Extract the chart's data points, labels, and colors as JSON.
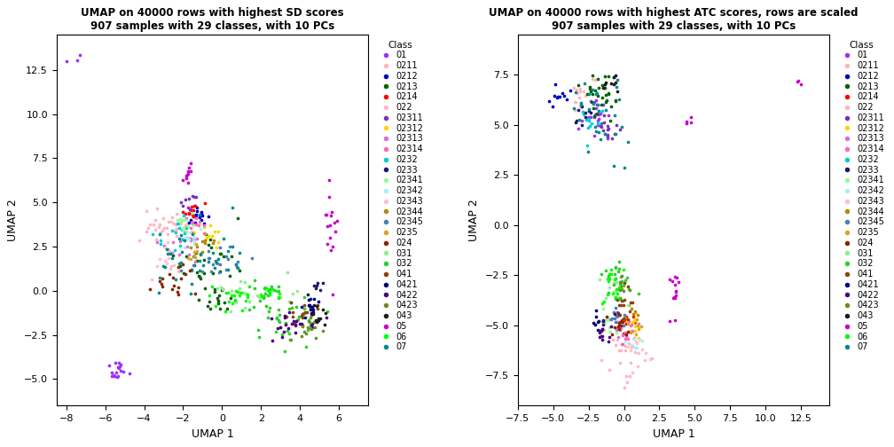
{
  "title1": "UMAP on 40000 rows with highest SD scores\n907 samples with 29 classes, with 10 PCs",
  "title2": "UMAP on 40000 rows with highest ATC scores, rows are scaled\n907 samples with 29 classes, with 10 PCs",
  "xlabel": "UMAP 1",
  "ylabel": "UMAP 2",
  "legend_title": "Class",
  "classes": [
    "01",
    "0211",
    "0212",
    "0213",
    "0214",
    "022",
    "02311",
    "02312",
    "02313",
    "02314",
    "0232",
    "0233",
    "02341",
    "02342",
    "02343",
    "02344",
    "02345",
    "0235",
    "024",
    "031",
    "032",
    "041",
    "0421",
    "0422",
    "0423",
    "043",
    "05",
    "06",
    "07"
  ],
  "class_colors": {
    "01": "#9B30FF",
    "0211": "#FFB6C1",
    "0212": "#0000CD",
    "0213": "#006400",
    "0214": "#FF0000",
    "022": "#FFB6C1",
    "02311": "#7B2FBE",
    "02312": "#FFD700",
    "02313": "#DA70D6",
    "02314": "#FF69B4",
    "0232": "#00CED1",
    "0233": "#191970",
    "02341": "#98FB98",
    "02342": "#AFEEEE",
    "02343": "#FFC0CB",
    "02344": "#B8860B",
    "02345": "#4682B4",
    "0235": "#DAA520",
    "024": "#8B2500",
    "031": "#90EE90",
    "032": "#32CD32",
    "041": "#8B4513",
    "0421": "#000080",
    "0422": "#4B0082",
    "0423": "#6B8E23",
    "043": "#1C1C1C",
    "05": "#CC00CC",
    "06": "#00FF00",
    "07": "#008B8B"
  },
  "plot1_xlim": [
    -8.5,
    7.5
  ],
  "plot1_ylim": [
    -6.5,
    14.5
  ],
  "plot2_xlim": [
    -7.5,
    14.5
  ],
  "plot2_ylim": [
    -9,
    9.5
  ]
}
